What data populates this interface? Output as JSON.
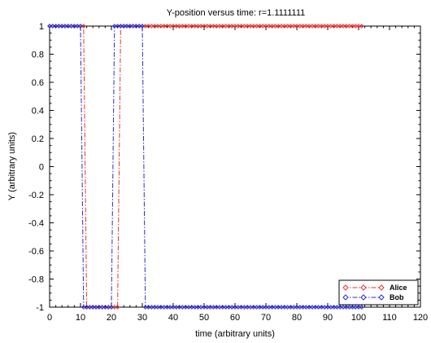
{
  "chart_data": {
    "type": "line",
    "title": "Y-position versus time: r=1.1111111",
    "xlabel": "time (arbitrary units)",
    "ylabel": "Y (arbitrary units)",
    "xlim": [
      0,
      120
    ],
    "ylim": [
      -1,
      1
    ],
    "x_ticks": [
      0,
      10,
      20,
      30,
      40,
      50,
      60,
      70,
      80,
      90,
      100,
      110,
      120
    ],
    "y_ticks": [
      1,
      0.8,
      0.6,
      0.4,
      0.2,
      0,
      -0.2,
      -0.4,
      -0.6,
      -0.8,
      -1
    ],
    "x_tick_labels": [
      "0",
      "10",
      "20",
      "30",
      "40",
      "50",
      "60",
      "70",
      "80",
      "90",
      "100",
      "110",
      "120"
    ],
    "y_tick_labels": [
      "1",
      "0.8",
      "0.6",
      "0.4",
      "0.2",
      "0",
      "-0.2",
      "-0.4",
      "-0.6",
      "-0.8",
      "-1"
    ],
    "grid": false,
    "legend_position": "bottom-right",
    "series": [
      {
        "name": "Alice",
        "color": "#e8312f",
        "line_style": "dash-dot",
        "marker": "diamond",
        "points": [
          [
            0,
            1
          ],
          [
            11,
            1
          ],
          [
            12,
            -1
          ],
          [
            22,
            -1
          ],
          [
            23,
            1
          ],
          [
            101,
            1
          ]
        ]
      },
      {
        "name": "Bob",
        "color": "#2b2bd6",
        "line_style": "dash-dot",
        "marker": "diamond",
        "points": [
          [
            0,
            1
          ],
          [
            10,
            1
          ],
          [
            11,
            -1
          ],
          [
            20,
            -1
          ],
          [
            21,
            1
          ],
          [
            30,
            1
          ],
          [
            31,
            -1
          ],
          [
            101,
            -1
          ]
        ]
      }
    ]
  }
}
